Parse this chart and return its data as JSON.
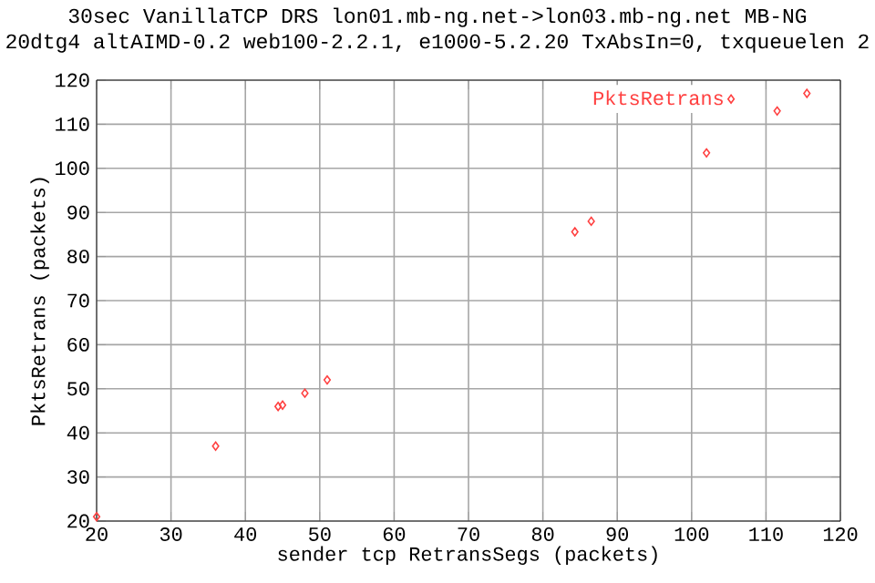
{
  "chart_data": {
    "type": "scatter",
    "title": "30sec VanillaTCP DRS lon01.mb-ng.net->lon03.mb-ng.net MB-NG",
    "subtitle": "20dtg4 altAIMD-0.2 web100-2.2.1, e1000-5.2.20 TxAbsIn=0, txqueuelen 2",
    "xlabel": "sender tcp RetransSegs (packets)",
    "ylabel": "PktsRetrans (packets)",
    "x": [
      20,
      36,
      44.4,
      45,
      48,
      51,
      84.3,
      86.5,
      102,
      111.5,
      115.5
    ],
    "series": [
      {
        "name": "PktsRetrans",
        "color": "#ff4040",
        "values": [
          21,
          37,
          46,
          46.3,
          49,
          52,
          85.6,
          88,
          103.5,
          113,
          117
        ]
      }
    ],
    "xlim": [
      20,
      120
    ],
    "ylim": [
      20,
      120
    ],
    "xticks": [
      20,
      30,
      40,
      50,
      60,
      70,
      80,
      90,
      100,
      110,
      120
    ],
    "yticks": [
      20,
      30,
      40,
      50,
      60,
      70,
      80,
      90,
      100,
      110,
      120
    ],
    "grid": true,
    "legend": "top right",
    "marker": "diamond"
  }
}
